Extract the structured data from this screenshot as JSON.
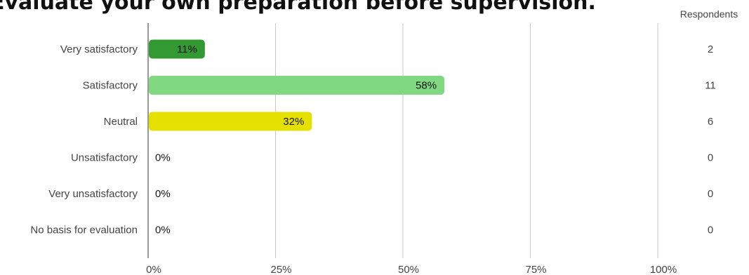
{
  "title": "Evaluate your own preparation before supervision.",
  "respondents_header": "Respondents",
  "chart_data": {
    "type": "bar",
    "orientation": "horizontal",
    "categories": [
      "Very satisfactory",
      "Satisfactory",
      "Neutral",
      "Unsatisfactory",
      "Very unsatisfactory",
      "No basis for evaluation"
    ],
    "values": [
      11,
      58,
      32,
      0,
      0,
      0
    ],
    "value_labels": [
      "11%",
      "58%",
      "32%",
      "0%",
      "0%",
      "0%"
    ],
    "respondents": [
      "2",
      "11",
      "6",
      "0",
      "0",
      "0"
    ],
    "bar_colors": [
      "#339933",
      "#80d880",
      "#e6e000",
      "#cccccc",
      "#cccccc",
      "#cccccc"
    ],
    "xlim": [
      0,
      100
    ],
    "xticks": [
      0,
      25,
      50,
      75,
      100
    ],
    "xtick_labels": [
      "0%",
      "25%",
      "50%",
      "75%",
      "100%"
    ],
    "grid": true,
    "gridline_color": "#c8c8c8",
    "axis_color": "#333333"
  }
}
